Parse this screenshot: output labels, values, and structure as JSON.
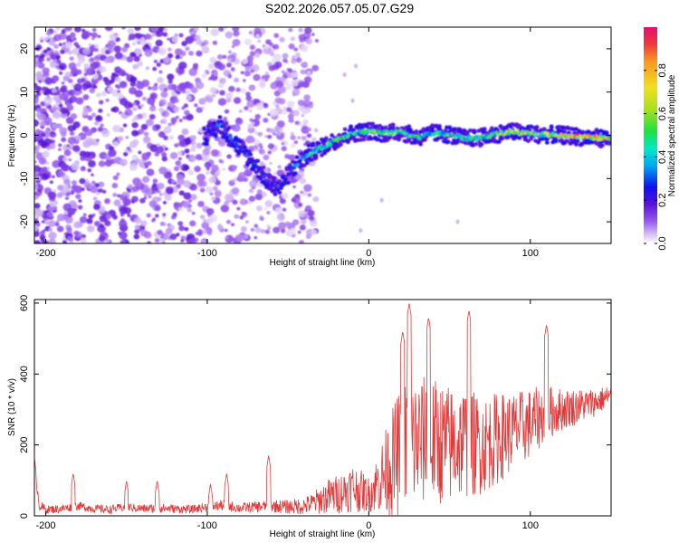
{
  "title": "S202.2026.057.05.07.G29",
  "colors": {
    "snr_line": "#e03a3a",
    "colormap": [
      "#ffffff",
      "#e8d8f8",
      "#b48cf0",
      "#7a30e8",
      "#5a12d6",
      "#1a16e8",
      "#00a8f0",
      "#00e8c8",
      "#20e040",
      "#a8e020",
      "#f0e020",
      "#f89a20",
      "#f03a3a",
      "#e01070"
    ]
  },
  "chart_data": [
    {
      "type": "heatmap",
      "xlabel": "Height of straight line (km)",
      "ylabel": "Frequency (Hz)",
      "xlim": [
        -207,
        150
      ],
      "ylim": [
        -25,
        25
      ],
      "xticks": [
        -200,
        -100,
        0,
        100
      ],
      "xtick_labels": [
        "-200",
        "-100",
        "0",
        "100"
      ],
      "yticks": [
        -20,
        -10,
        0,
        10,
        20
      ],
      "ytick_labels": [
        "-20",
        "-10",
        "0",
        "10",
        "20"
      ],
      "ridge": {
        "x": [
          -100,
          -92,
          -85,
          -78,
          -70,
          -62,
          -55,
          -48,
          -42,
          -36,
          -30,
          -20,
          -10,
          0,
          10,
          20,
          30,
          40,
          50,
          60,
          70,
          80,
          90,
          100,
          110,
          120,
          130,
          140,
          150
        ],
        "y": [
          0,
          2.5,
          -1,
          -3.5,
          -7,
          -11,
          -12,
          -8,
          -6,
          -4,
          -3,
          -1,
          0.5,
          1,
          0.5,
          0.8,
          -0.5,
          0.5,
          0.2,
          -0.8,
          -0.5,
          0.4,
          0.8,
          0.3,
          0.2,
          0,
          -0.3,
          -0.6,
          -0.8
        ],
        "amplitude": [
          0.3,
          0.35,
          0.3,
          0.3,
          0.3,
          0.3,
          0.3,
          0.35,
          0.4,
          0.45,
          0.5,
          0.55,
          0.5,
          0.55,
          0.6,
          0.55,
          0.5,
          0.5,
          0.55,
          0.5,
          0.55,
          0.6,
          0.65,
          0.7,
          0.75,
          0.8,
          0.85,
          0.9,
          0.95
        ]
      },
      "colorbar": {
        "label": "Normalized spectral amplitude",
        "range": [
          0,
          1
        ],
        "ticks": [
          0.0,
          0.2,
          0.4,
          0.6,
          0.8
        ],
        "tick_labels": [
          "0.0",
          "0.2",
          "0.4",
          "0.6",
          "0.8"
        ]
      }
    },
    {
      "type": "line",
      "xlabel": "Height of straight line (km)",
      "ylabel": "SNR (10 * v/v)",
      "xlim": [
        -207,
        150
      ],
      "ylim": [
        0,
        610
      ],
      "xticks": [
        -200,
        -100,
        0,
        100
      ],
      "xtick_labels": [
        "-200",
        "-100",
        "0",
        "100"
      ],
      "yticks": [
        0,
        200,
        400,
        600
      ],
      "ytick_labels": [
        "0",
        "200",
        "400",
        "600"
      ],
      "envelope": {
        "x": [
          -207,
          -204,
          -200,
          -190,
          -180,
          -170,
          -160,
          -150,
          -140,
          -130,
          -120,
          -110,
          -100,
          -90,
          -80,
          -70,
          -60,
          -50,
          -40,
          -35,
          -30,
          -25,
          -20,
          -15,
          -10,
          -5,
          0,
          5,
          10,
          15,
          20,
          25,
          30,
          40,
          50,
          60,
          70,
          80,
          90,
          100,
          110,
          120,
          130,
          140,
          150
        ],
        "base": [
          150,
          30,
          18,
          20,
          28,
          20,
          18,
          25,
          20,
          22,
          20,
          18,
          25,
          30,
          22,
          25,
          28,
          25,
          28,
          35,
          45,
          55,
          60,
          70,
          80,
          70,
          60,
          90,
          120,
          150,
          180,
          200,
          210,
          210,
          200,
          210,
          200,
          220,
          240,
          260,
          290,
          300,
          310,
          320,
          340
        ],
        "amp": [
          20,
          15,
          12,
          12,
          12,
          12,
          12,
          12,
          12,
          14,
          12,
          12,
          14,
          16,
          14,
          16,
          18,
          20,
          25,
          30,
          40,
          50,
          55,
          60,
          70,
          60,
          50,
          80,
          120,
          160,
          190,
          200,
          190,
          180,
          170,
          160,
          140,
          130,
          110,
          100,
          80,
          60,
          50,
          40,
          30
        ]
      },
      "peaks": {
        "x": [
          -183,
          -150,
          -131,
          -98,
          -88,
          -62,
          21,
          25,
          37,
          62,
          110
        ],
        "y": [
          120,
          100,
          100,
          90,
          120,
          170,
          520,
          600,
          560,
          580,
          540
        ]
      }
    }
  ]
}
